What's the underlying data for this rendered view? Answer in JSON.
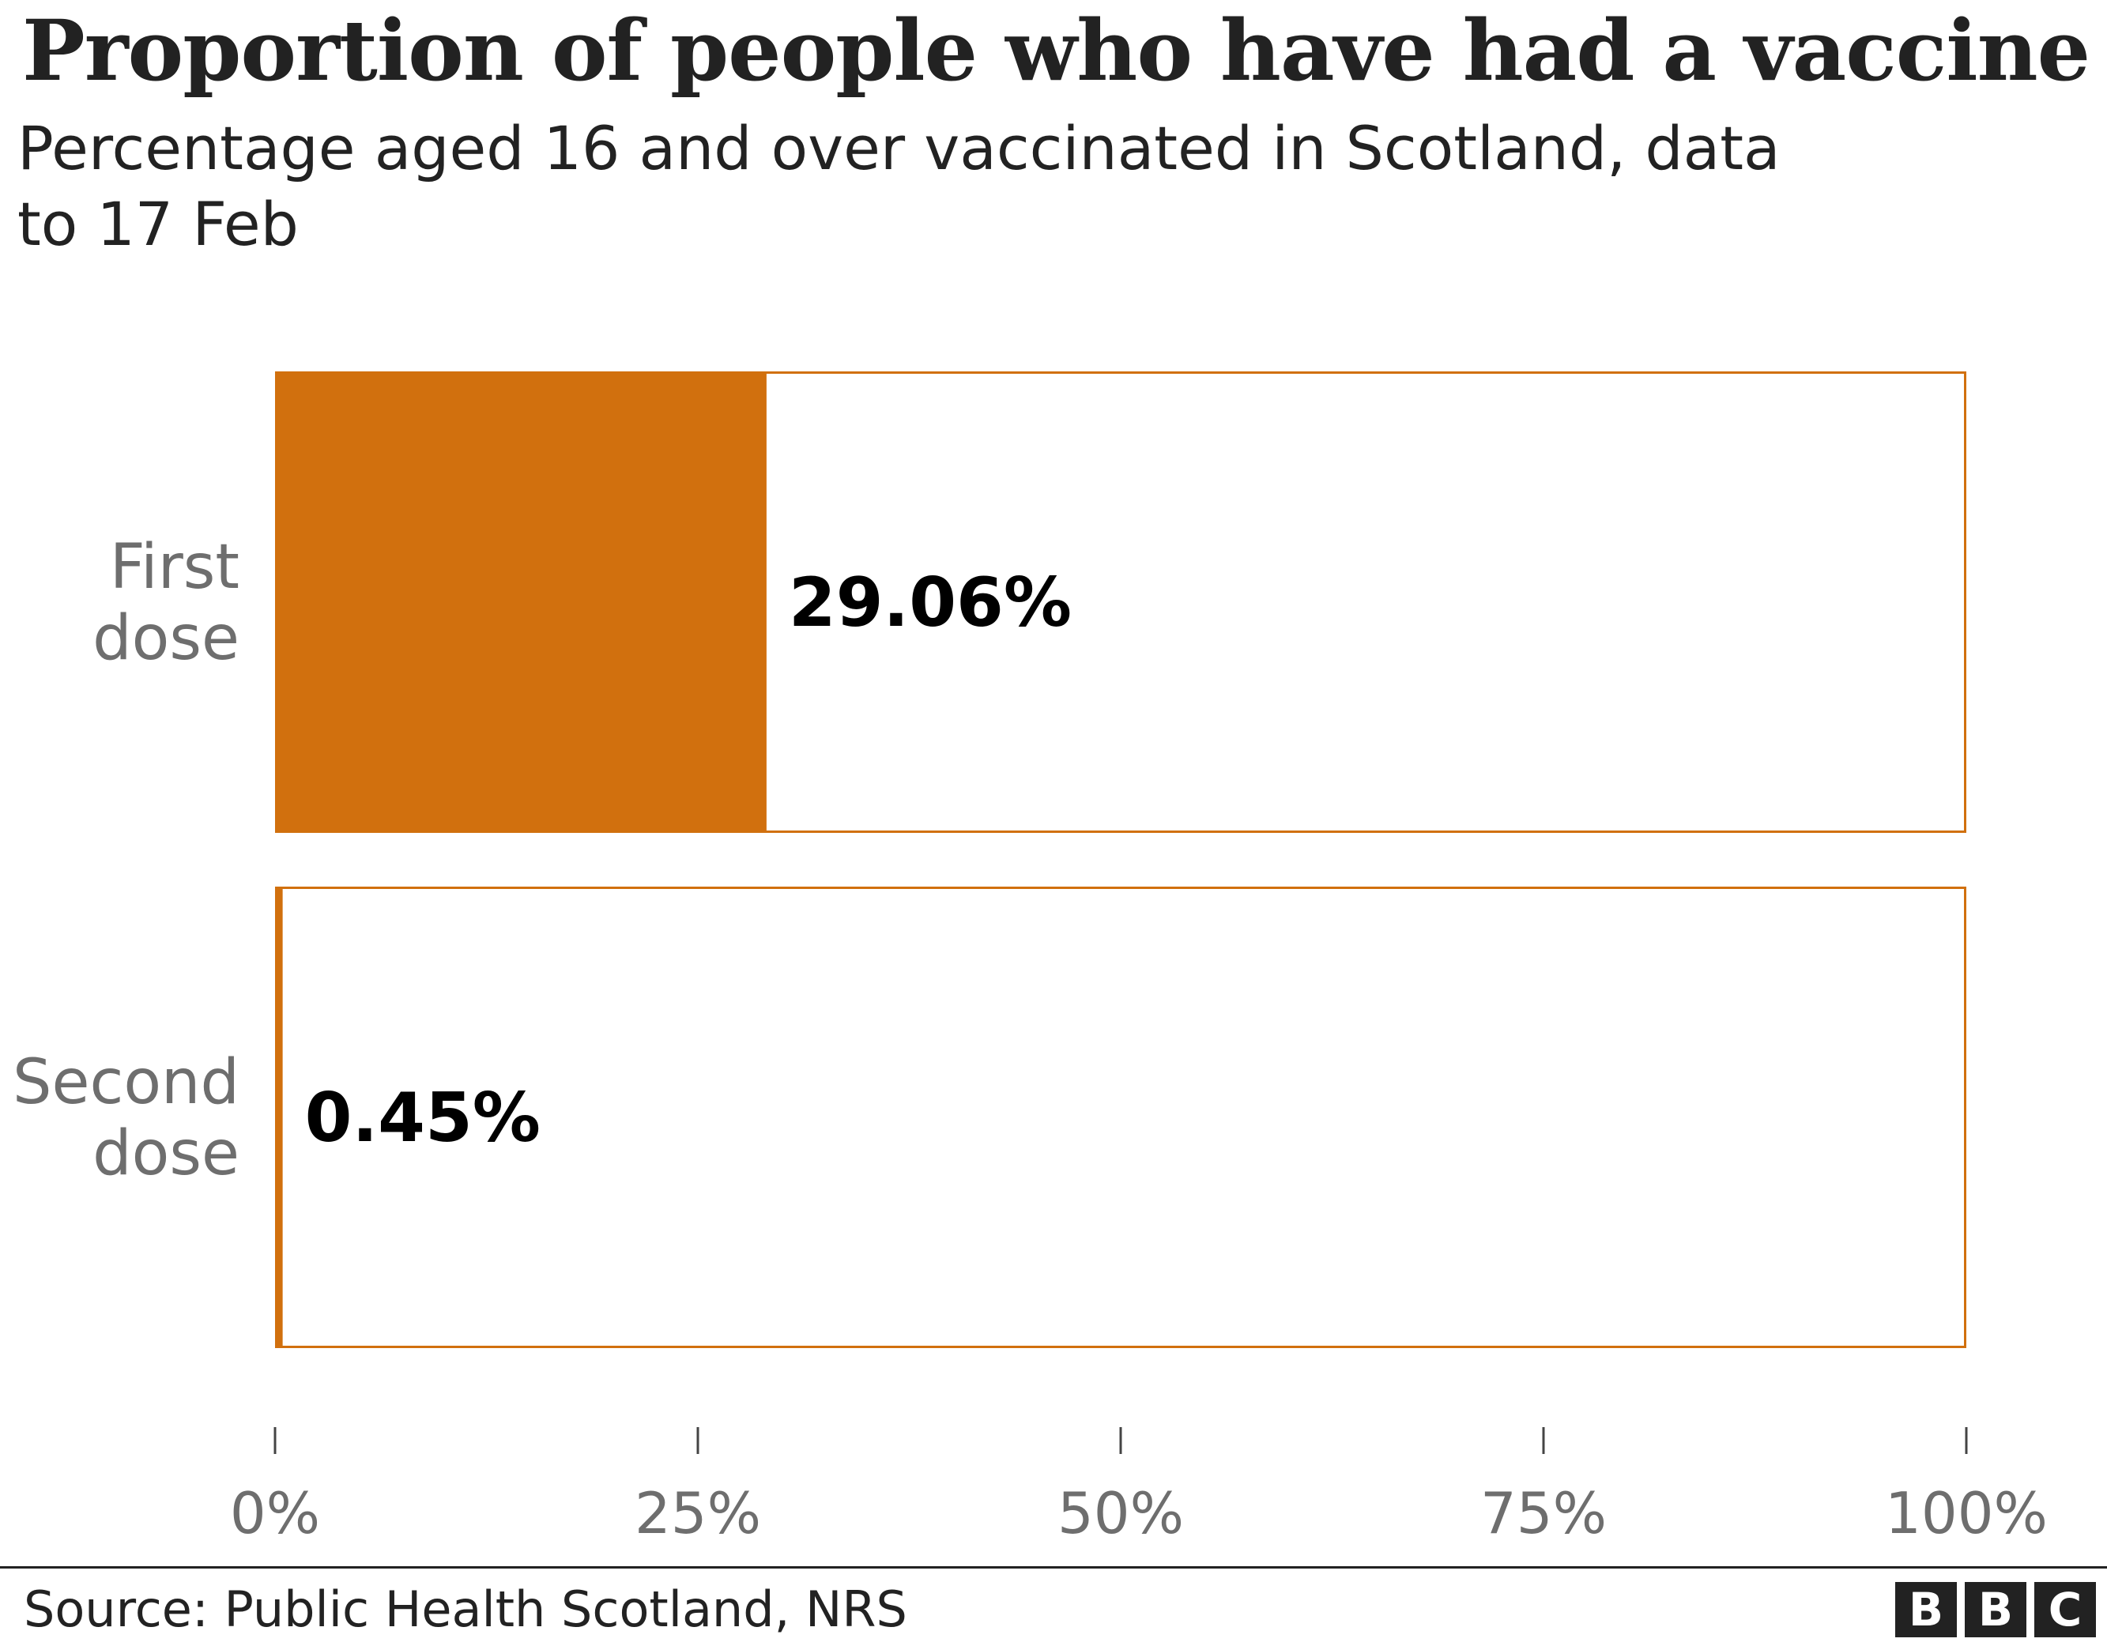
{
  "chart_data": {
    "type": "bar",
    "orientation": "horizontal",
    "title": "Proportion of people who have had a vaccine",
    "subtitle": "Percentage aged 16 and over vaccinated in Scotland, data to 17 Feb",
    "categories": [
      {
        "lines": [
          "First",
          "dose"
        ]
      },
      {
        "lines": [
          "Second",
          "dose"
        ]
      }
    ],
    "values": [
      29.06,
      0.45
    ],
    "value_labels": [
      "29.06%",
      "0.45%"
    ],
    "xlim": [
      0,
      100
    ],
    "ticks": [
      0,
      25,
      50,
      75,
      100
    ],
    "tick_labels": [
      "0%",
      "25%",
      "50%",
      "75%",
      "100%"
    ],
    "grid": false,
    "legend": "none",
    "colors": {
      "bar": "#d1700e",
      "outline": "#d1700e"
    }
  },
  "footer": {
    "source": "Source: Public Health Scotland, NRS",
    "logo_letters": [
      "B",
      "B",
      "C"
    ]
  }
}
